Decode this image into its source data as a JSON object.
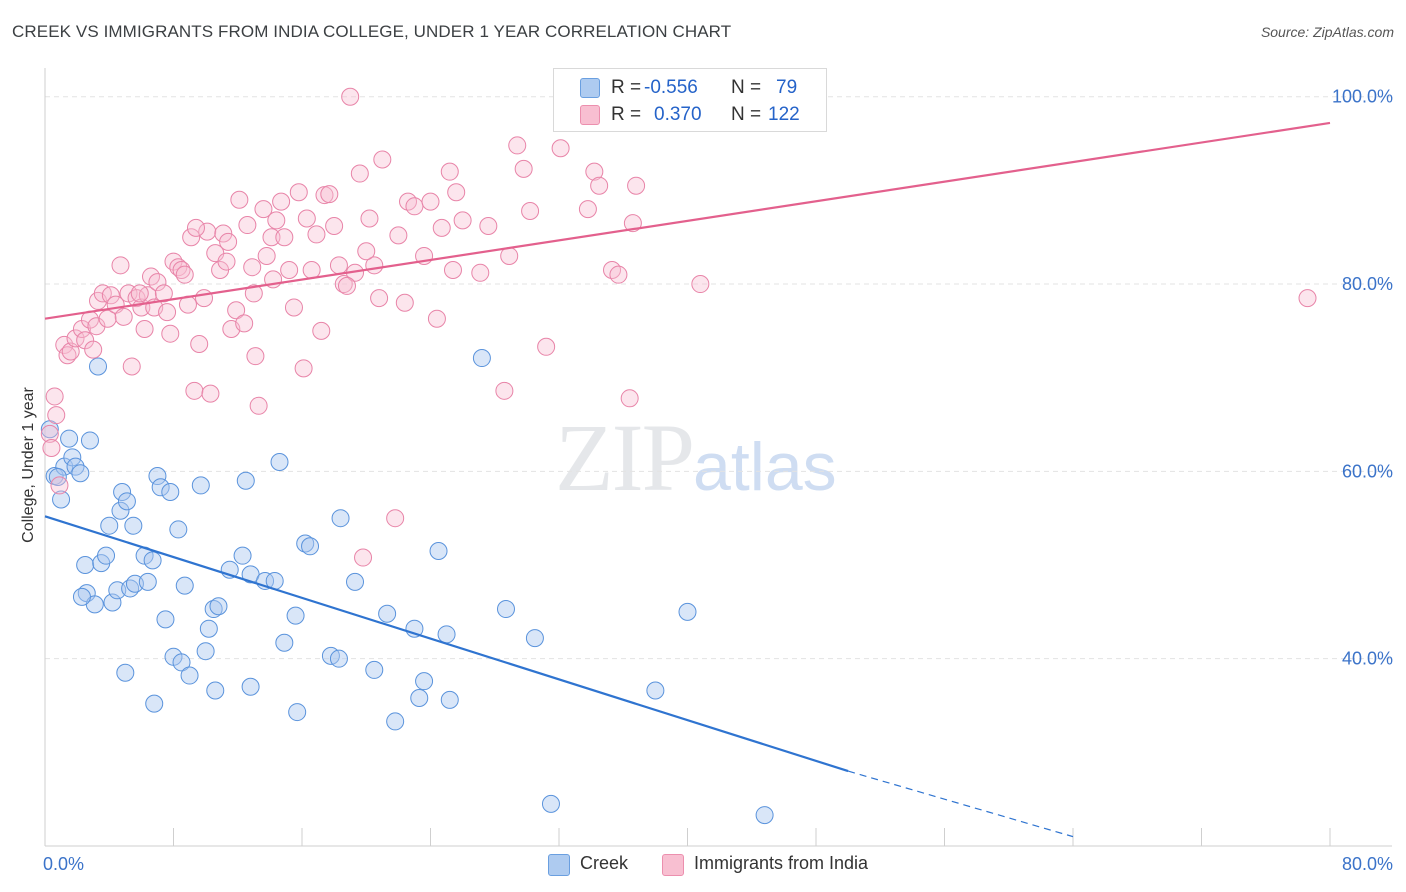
{
  "title": "CREEK VS IMMIGRANTS FROM INDIA COLLEGE, UNDER 1 YEAR CORRELATION CHART",
  "source": "Source: ZipAtlas.com",
  "watermark": {
    "zip": "ZIP",
    "atlas": "atlas"
  },
  "legend": {
    "rows": [
      {
        "r_label": "R =",
        "r_value": "-0.556",
        "n_label": "N =",
        "n_value": "79",
        "color": "#aecbf0",
        "border": "#6a9fe0"
      },
      {
        "r_label": "R =",
        "r_value": "0.370",
        "n_label": "N =",
        "n_value": "122",
        "color": "#f8bfd1",
        "border": "#ec8fae"
      }
    ]
  },
  "bottom_legend": [
    {
      "label": "Creek",
      "color": "#aecbf0",
      "border": "#6a9fe0"
    },
    {
      "label": "Immigrants from India",
      "color": "#f8bfd1",
      "border": "#ec8fae"
    }
  ],
  "chart_data": {
    "type": "scatter",
    "xlabel": "",
    "ylabel": "College, Under 1 year",
    "xlim": [
      0,
      80
    ],
    "ylim": [
      20,
      102
    ],
    "x_tick_labels": {
      "min": "0.0%",
      "max": "80.0%"
    },
    "y_ticks": [
      40,
      60,
      80,
      100
    ],
    "y_tick_labels": [
      "40.0%",
      "60.0%",
      "80.0%",
      "100.0%"
    ],
    "grid": true,
    "colors": {
      "creek": "#2f74d0",
      "india": "#e3608d",
      "tick_label": "#3b73c9"
    },
    "series": [
      {
        "name": "Creek",
        "trend": {
          "x0": 0,
          "y0": 55.2,
          "x1": 50,
          "y1": 28.0,
          "dash_x1": 64,
          "dash_y1": 21.0
        },
        "points": [
          [
            0.3,
            64.5
          ],
          [
            0.6,
            59.5
          ],
          [
            1.0,
            57.0
          ],
          [
            1.2,
            60.5
          ],
          [
            1.5,
            63.5
          ],
          [
            1.7,
            61.5
          ],
          [
            1.9,
            60.5
          ],
          [
            2.2,
            59.8
          ],
          [
            2.8,
            63.3
          ],
          [
            3.3,
            71.2
          ],
          [
            2.5,
            50.0
          ],
          [
            2.6,
            47.0
          ],
          [
            3.1,
            45.8
          ],
          [
            3.5,
            50.2
          ],
          [
            3.8,
            51.0
          ],
          [
            4.0,
            54.2
          ],
          [
            4.2,
            46.0
          ],
          [
            4.5,
            47.3
          ],
          [
            4.7,
            55.8
          ],
          [
            4.8,
            57.8
          ],
          [
            5.1,
            56.8
          ],
          [
            5.3,
            47.5
          ],
          [
            5.5,
            54.2
          ],
          [
            5.6,
            48.0
          ],
          [
            6.2,
            51.0
          ],
          [
            6.4,
            48.2
          ],
          [
            6.7,
            50.5
          ],
          [
            7.0,
            59.5
          ],
          [
            7.2,
            58.3
          ],
          [
            7.5,
            44.2
          ],
          [
            7.8,
            57.8
          ],
          [
            8.0,
            40.2
          ],
          [
            8.3,
            53.8
          ],
          [
            8.5,
            39.6
          ],
          [
            8.7,
            47.8
          ],
          [
            9.0,
            38.2
          ],
          [
            9.7,
            58.5
          ],
          [
            10.0,
            40.8
          ],
          [
            10.2,
            43.2
          ],
          [
            10.5,
            45.3
          ],
          [
            10.8,
            45.6
          ],
          [
            10.6,
            36.6
          ],
          [
            11.5,
            49.5
          ],
          [
            12.3,
            51.0
          ],
          [
            12.8,
            37.0
          ],
          [
            12.8,
            49.0
          ],
          [
            13.7,
            48.3
          ],
          [
            14.3,
            48.3
          ],
          [
            14.6,
            61.0
          ],
          [
            14.9,
            41.7
          ],
          [
            15.6,
            44.6
          ],
          [
            15.7,
            34.3
          ],
          [
            16.2,
            52.3
          ],
          [
            16.5,
            52.0
          ],
          [
            17.8,
            40.3
          ],
          [
            18.3,
            40.0
          ],
          [
            18.4,
            55.0
          ],
          [
            19.3,
            48.2
          ],
          [
            20.5,
            38.8
          ],
          [
            21.3,
            44.8
          ],
          [
            21.8,
            33.3
          ],
          [
            23.0,
            43.2
          ],
          [
            23.3,
            35.8
          ],
          [
            23.6,
            37.6
          ],
          [
            24.5,
            51.5
          ],
          [
            25.0,
            42.6
          ],
          [
            25.2,
            35.6
          ],
          [
            27.2,
            72.1
          ],
          [
            28.7,
            45.3
          ],
          [
            30.5,
            42.2
          ],
          [
            31.5,
            24.5
          ],
          [
            38.0,
            36.6
          ],
          [
            40.0,
            45.0
          ],
          [
            44.8,
            23.3
          ],
          [
            5.0,
            38.5
          ],
          [
            6.8,
            35.2
          ],
          [
            2.3,
            46.6
          ],
          [
            0.8,
            59.4
          ],
          [
            12.5,
            59.0
          ]
        ]
      },
      {
        "name": "Immigrants from India",
        "trend": {
          "x0": 0,
          "y0": 76.3,
          "x1": 80,
          "y1": 97.2
        },
        "points": [
          [
            0.3,
            64.0
          ],
          [
            0.6,
            68.0
          ],
          [
            0.7,
            66.0
          ],
          [
            1.2,
            73.5
          ],
          [
            1.4,
            72.4
          ],
          [
            1.6,
            72.8
          ],
          [
            1.9,
            74.2
          ],
          [
            2.3,
            75.2
          ],
          [
            2.5,
            74.0
          ],
          [
            2.8,
            76.2
          ],
          [
            3.2,
            75.5
          ],
          [
            3.3,
            78.2
          ],
          [
            3.6,
            79.0
          ],
          [
            3.9,
            76.3
          ],
          [
            4.1,
            78.8
          ],
          [
            4.4,
            77.8
          ],
          [
            4.7,
            82.0
          ],
          [
            4.9,
            76.5
          ],
          [
            5.2,
            79.0
          ],
          [
            5.4,
            71.2
          ],
          [
            5.7,
            78.5
          ],
          [
            6.0,
            77.5
          ],
          [
            6.2,
            75.2
          ],
          [
            6.4,
            78.8
          ],
          [
            6.8,
            77.5
          ],
          [
            6.6,
            80.8
          ],
          [
            7.0,
            80.2
          ],
          [
            7.4,
            79.0
          ],
          [
            7.6,
            77.0
          ],
          [
            7.8,
            74.7
          ],
          [
            8.0,
            82.4
          ],
          [
            8.3,
            81.8
          ],
          [
            8.5,
            81.5
          ],
          [
            8.7,
            81.0
          ],
          [
            8.9,
            77.8
          ],
          [
            9.1,
            85.0
          ],
          [
            9.3,
            68.6
          ],
          [
            9.6,
            73.6
          ],
          [
            9.9,
            78.5
          ],
          [
            10.1,
            85.6
          ],
          [
            10.3,
            68.3
          ],
          [
            10.6,
            83.3
          ],
          [
            10.9,
            81.5
          ],
          [
            11.1,
            85.4
          ],
          [
            11.3,
            82.4
          ],
          [
            11.6,
            75.2
          ],
          [
            11.9,
            77.2
          ],
          [
            12.1,
            89.0
          ],
          [
            12.4,
            75.8
          ],
          [
            12.6,
            86.3
          ],
          [
            12.9,
            81.8
          ],
          [
            13.1,
            72.3
          ],
          [
            13.3,
            67.0
          ],
          [
            13.6,
            88.0
          ],
          [
            13.8,
            83.0
          ],
          [
            14.1,
            85.0
          ],
          [
            14.4,
            86.8
          ],
          [
            14.7,
            88.8
          ],
          [
            14.9,
            85.0
          ],
          [
            15.2,
            81.5
          ],
          [
            15.5,
            77.5
          ],
          [
            15.8,
            89.8
          ],
          [
            16.1,
            71.0
          ],
          [
            16.3,
            87.0
          ],
          [
            16.6,
            81.5
          ],
          [
            16.9,
            85.3
          ],
          [
            17.2,
            75.0
          ],
          [
            17.4,
            89.5
          ],
          [
            17.7,
            89.6
          ],
          [
            18.0,
            86.2
          ],
          [
            18.3,
            82.0
          ],
          [
            18.6,
            80.0
          ],
          [
            19.0,
            100.0
          ],
          [
            19.3,
            81.2
          ],
          [
            19.6,
            91.8
          ],
          [
            19.8,
            50.8
          ],
          [
            20.2,
            87.0
          ],
          [
            20.5,
            82.0
          ],
          [
            20.8,
            78.5
          ],
          [
            21.0,
            93.3
          ],
          [
            21.8,
            55.0
          ],
          [
            22.4,
            78.0
          ],
          [
            22.6,
            88.8
          ],
          [
            23.0,
            88.3
          ],
          [
            23.6,
            83.0
          ],
          [
            24.0,
            88.8
          ],
          [
            24.4,
            76.3
          ],
          [
            24.7,
            86.0
          ],
          [
            25.2,
            92.0
          ],
          [
            25.4,
            81.5
          ],
          [
            25.6,
            89.8
          ],
          [
            27.1,
            81.2
          ],
          [
            27.6,
            86.2
          ],
          [
            28.6,
            68.6
          ],
          [
            28.9,
            83.0
          ],
          [
            29.4,
            94.8
          ],
          [
            29.8,
            92.3
          ],
          [
            30.2,
            87.8
          ],
          [
            31.2,
            73.3
          ],
          [
            32.1,
            94.5
          ],
          [
            33.8,
            88.0
          ],
          [
            34.2,
            92.0
          ],
          [
            34.5,
            90.5
          ],
          [
            35.3,
            81.5
          ],
          [
            35.7,
            81.0
          ],
          [
            36.4,
            67.8
          ],
          [
            36.6,
            86.5
          ],
          [
            36.8,
            90.5
          ],
          [
            40.8,
            80.0
          ],
          [
            78.6,
            78.5
          ],
          [
            0.4,
            62.5
          ],
          [
            0.9,
            58.5
          ],
          [
            3.0,
            73.0
          ],
          [
            5.9,
            79.0
          ],
          [
            9.4,
            86.0
          ],
          [
            11.4,
            84.5
          ],
          [
            14.2,
            80.5
          ],
          [
            18.8,
            79.8
          ],
          [
            20.0,
            83.5
          ],
          [
            22.0,
            85.2
          ],
          [
            26.0,
            86.8
          ],
          [
            13.0,
            79.0
          ]
        ]
      }
    ]
  }
}
